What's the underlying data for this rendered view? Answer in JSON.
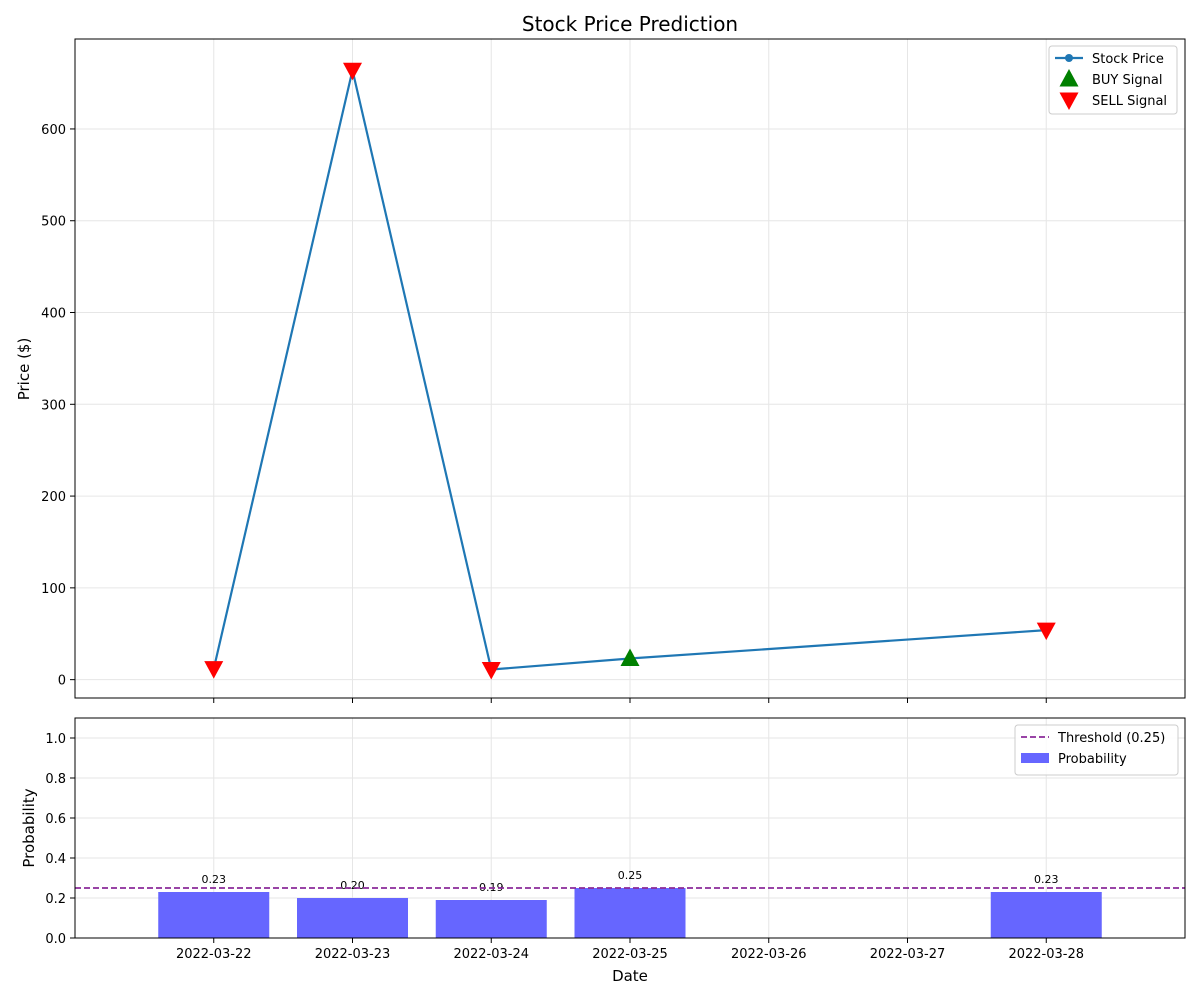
{
  "chart_data": [
    {
      "type": "line",
      "title": "Stock Price Prediction",
      "xlabel": "",
      "ylabel": "Price ($)",
      "x": [
        "2022-03-22",
        "2022-03-23",
        "2022-03-24",
        "2022-03-25",
        "2022-03-28"
      ],
      "xlim": [
        "2022-03-21",
        "2022-03-29"
      ],
      "xticks": [
        "2022-03-22",
        "2022-03-23",
        "2022-03-24",
        "2022-03-25",
        "2022-03-26",
        "2022-03-27",
        "2022-03-28"
      ],
      "ylim": [
        -20,
        698
      ],
      "yticks": [
        0,
        100,
        200,
        300,
        400,
        500,
        600
      ],
      "grid": true,
      "legend_position": "top-right",
      "series": [
        {
          "name": "Stock Price",
          "values": [
            12,
            664,
            11,
            23,
            54
          ],
          "color": "#1f77b4",
          "marker": "circle"
        }
      ],
      "signals": [
        {
          "name": "BUY Signal",
          "color": "#008000",
          "marker": "triangle-up",
          "points": [
            {
              "x": "2022-03-25",
              "y": 23
            }
          ]
        },
        {
          "name": "SELL Signal",
          "color": "#ff0000",
          "marker": "triangle-down",
          "points": [
            {
              "x": "2022-03-22",
              "y": 12
            },
            {
              "x": "2022-03-23",
              "y": 664
            },
            {
              "x": "2022-03-24",
              "y": 11
            },
            {
              "x": "2022-03-28",
              "y": 54
            }
          ]
        }
      ]
    },
    {
      "type": "bar",
      "title": "",
      "xlabel": "Date",
      "ylabel": "Probability",
      "categories": [
        "2022-03-22",
        "2022-03-23",
        "2022-03-24",
        "2022-03-25",
        "2022-03-28"
      ],
      "series": [
        {
          "name": "Probability",
          "values": [
            0.23,
            0.2,
            0.19,
            0.25,
            0.23
          ],
          "color": "#6666ff"
        }
      ],
      "data_labels": [
        "0.23",
        "0.20",
        "0.19",
        "0.25",
        "0.23"
      ],
      "threshold": {
        "name": "Threshold (0.25)",
        "value": 0.25,
        "color": "#8b2a9a",
        "style": "dashed"
      },
      "xlim": [
        "2022-03-21",
        "2022-03-29"
      ],
      "xticks": [
        "2022-03-22",
        "2022-03-23",
        "2022-03-24",
        "2022-03-25",
        "2022-03-26",
        "2022-03-27",
        "2022-03-28"
      ],
      "ylim": [
        0,
        1.1
      ],
      "yticks": [
        "0.0",
        "0.2",
        "0.4",
        "0.6",
        "0.8",
        "1.0"
      ],
      "grid": true,
      "legend_position": "top-right"
    }
  ]
}
